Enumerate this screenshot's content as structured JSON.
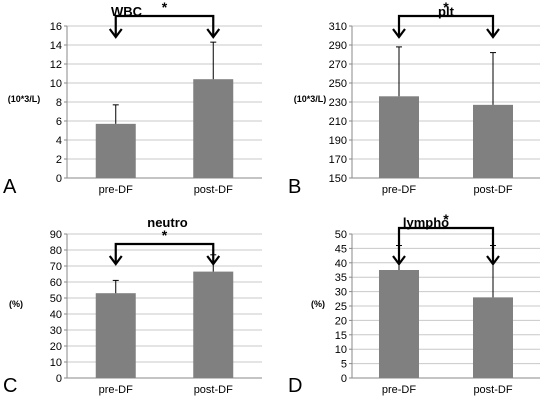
{
  "chart_data": [
    {
      "panel_letter": "A",
      "type": "bar",
      "title": "WBC",
      "ylabel": "(10*3/L)",
      "categories": [
        "pre-DF",
        "post-DF"
      ],
      "values": [
        5.7,
        10.4
      ],
      "error_upper": [
        7.7,
        14.3
      ],
      "ylim": [
        0,
        16
      ],
      "yticks": [
        0,
        2,
        4,
        6,
        8,
        10,
        12,
        14,
        16
      ],
      "grid": true,
      "significance": "*",
      "bar_color": "#808080"
    },
    {
      "panel_letter": "B",
      "type": "bar",
      "title": "plt",
      "ylabel": "(10*3/L)",
      "categories": [
        "pre-DF",
        "post-DF"
      ],
      "values": [
        236,
        227
      ],
      "error_upper": [
        288,
        282
      ],
      "ylim": [
        150,
        310
      ],
      "yticks": [
        150,
        170,
        190,
        210,
        230,
        250,
        270,
        290,
        310
      ],
      "grid": true,
      "significance": "*",
      "bar_color": "#808080"
    },
    {
      "panel_letter": "C",
      "type": "bar",
      "title": "neutro",
      "ylabel": "(%)",
      "categories": [
        "pre-DF",
        "post-DF"
      ],
      "values": [
        53,
        66.5
      ],
      "error_upper": [
        61,
        77
      ],
      "ylim": [
        0,
        90
      ],
      "yticks": [
        0,
        10,
        20,
        30,
        40,
        50,
        60,
        70,
        80,
        90
      ],
      "grid": true,
      "significance": "*",
      "bar_color": "#808080"
    },
    {
      "panel_letter": "D",
      "type": "bar",
      "title": "lympho",
      "ylabel": "(%)",
      "categories": [
        "pre-DF",
        "post-DF"
      ],
      "values": [
        37.5,
        28
      ],
      "error_upper": [
        46,
        46
      ],
      "ylim": [
        0,
        50
      ],
      "yticks": [
        0,
        5,
        10,
        15,
        20,
        25,
        30,
        35,
        40,
        45,
        50
      ],
      "grid": true,
      "significance": "*",
      "bar_color": "#808080"
    }
  ]
}
